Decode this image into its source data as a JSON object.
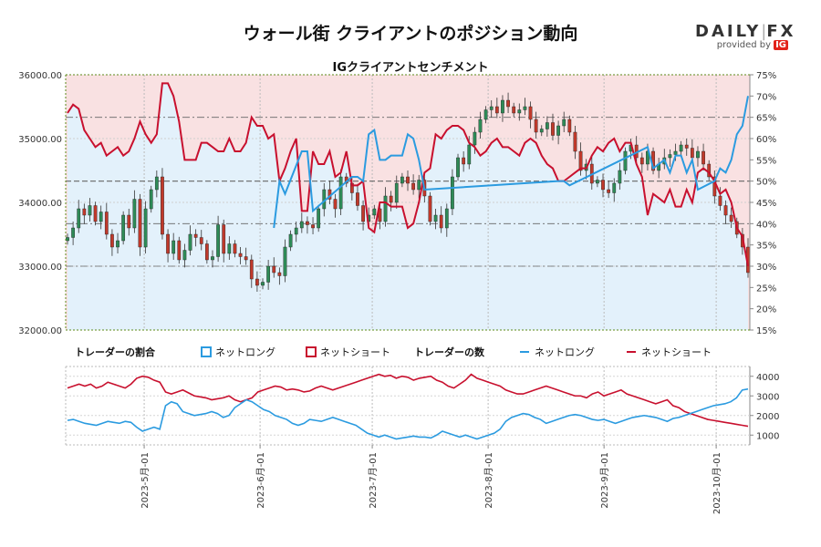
{
  "title": "ウォール街 クライアントのポジション動向",
  "subtitle": "IGクライアントセンチメント",
  "logo": {
    "brand_left": "DAILY",
    "brand_right": "FX",
    "provided": "provided by",
    "ig": "IG"
  },
  "colors": {
    "net_long": "#2b9be0",
    "net_short": "#c8102e",
    "candle_up": "#2e8b57",
    "candle_down": "#c0392b",
    "wick": "#333333",
    "pink_zone": "#f9e1e2",
    "blue_zone": "#e3f1fb",
    "left_axis": "#5b8a1a"
  },
  "legend": {
    "ratio_title": "トレーダーの割合",
    "count_title": "トレーダーの数",
    "net_long": "ネットロング",
    "net_short": "ネットショート"
  },
  "chart_data": [
    {
      "type": "line",
      "title": "IGクライアントセンチメント",
      "price_axis": {
        "ylim": [
          32000,
          36000
        ],
        "ticks": [
          "32000.00",
          "33000.00",
          "34000.00",
          "35000.00",
          "36000.00"
        ]
      },
      "ratio_axis": {
        "ylim": [
          15,
          75
        ],
        "ticks": [
          "15%",
          "20%",
          "25%",
          "30%",
          "35%",
          "40%",
          "45%",
          "50%",
          "55%",
          "60%",
          "65%",
          "70%",
          "75%"
        ]
      },
      "reference_lines_pct": [
        30,
        40,
        50,
        65
      ],
      "date_ticks": [
        "2023-5月-01",
        "2023-6月-01",
        "2023-7月-01",
        "2023-8月-01",
        "2023-9月-01",
        "2023-10月-01"
      ],
      "start_date": "2023-04-10",
      "days": 183,
      "price_close_series": [
        33450,
        33600,
        33900,
        33800,
        33950,
        33700,
        33850,
        33500,
        33300,
        33400,
        33800,
        33600,
        34050,
        33300,
        33900,
        34200,
        34400,
        33500,
        33200,
        33400,
        33100,
        33250,
        33500,
        33450,
        33350,
        33100,
        33150,
        33650,
        33200,
        33350,
        33200,
        33150,
        33100,
        32800,
        32700,
        32750,
        33000,
        32900,
        32850,
        33300,
        33500,
        33600,
        33700,
        33650,
        33600,
        33900,
        34200,
        34050,
        33900,
        34400,
        34300,
        34150,
        33950,
        33700,
        33800,
        33900,
        33700,
        34100,
        34000,
        34300,
        34400,
        34300,
        34200,
        34350,
        34100,
        33700,
        33800,
        33600,
        33900,
        34400,
        34700,
        34600,
        34900,
        35100,
        35300,
        35450,
        35500,
        35400,
        35600,
        35500,
        35400,
        35450,
        35500,
        35300,
        35100,
        35150,
        35250,
        35050,
        35200,
        35300,
        35100,
        34800,
        34500,
        34600,
        34300,
        34350,
        34200,
        34150,
        34300,
        34500,
        34800,
        34900,
        34700,
        34600,
        34800,
        34500,
        34600,
        34700,
        34750,
        34800,
        34900,
        34850,
        34700,
        34800,
        34600,
        34400,
        34100,
        33950,
        33800,
        33700,
        33500,
        33300,
        32900
      ],
      "series": [
        {
          "name": "ネットロング",
          "values_pct": [
            34,
            32,
            33,
            38,
            40,
            42,
            41,
            44,
            43,
            42,
            44,
            43,
            40,
            36,
            39,
            41,
            39,
            27,
            27,
            30,
            36,
            45,
            45,
            45,
            41,
            41,
            42,
            43,
            43,
            40,
            43,
            43,
            41,
            35,
            37,
            37,
            40,
            39,
            50,
            47,
            43,
            40,
            57,
            57,
            43,
            46,
            46,
            43,
            49,
            48,
            43,
            51,
            51,
            50,
            61,
            62,
            55,
            55,
            56,
            56,
            56,
            61,
            60,
            55,
            48,
            47,
            39,
            40,
            38,
            37,
            37,
            38,
            41,
            42,
            44,
            43,
            41,
            40,
            42,
            42,
            43,
            44,
            41,
            40,
            41,
            44,
            46,
            47,
            50,
            50,
            49,
            48,
            47,
            47,
            44,
            42,
            43,
            41,
            40,
            43,
            41,
            41,
            46,
            49,
            58,
            53,
            54,
            55,
            52,
            56,
            56,
            52,
            55,
            48,
            47,
            48,
            50,
            53,
            52,
            55,
            61,
            63,
            70
          ],
          "net_short_values_pct": [
            66,
            68,
            67,
            62,
            60,
            58,
            59,
            56,
            57,
            58,
            56,
            57,
            60,
            64,
            61,
            59,
            61,
            73,
            73,
            70,
            64,
            55,
            55,
            55,
            59,
            59,
            58,
            57,
            57,
            60,
            57,
            57,
            59,
            65,
            63,
            63,
            60,
            61,
            50,
            53,
            57,
            60,
            43,
            43,
            57,
            54,
            54,
            57,
            51,
            52,
            57,
            49,
            49,
            50,
            39,
            38,
            45,
            45,
            44,
            44,
            44,
            39,
            40,
            45,
            52,
            53,
            61,
            60,
            62,
            63,
            63,
            62,
            59,
            58,
            56,
            57,
            59,
            60,
            58,
            58,
            57,
            56,
            59,
            60,
            59,
            56,
            54,
            53,
            50,
            50,
            51,
            52,
            53,
            53,
            56,
            58,
            57,
            59,
            60,
            57,
            59,
            59,
            54,
            51,
            42,
            47,
            46,
            45,
            48,
            44,
            44,
            48,
            45,
            52,
            53,
            52,
            50,
            47,
            48,
            45,
            39,
            37,
            30
          ]
        }
      ]
    },
    {
      "type": "line",
      "title": "トレーダーの数",
      "ylim": [
        500,
        4500
      ],
      "ticks": [
        "1000",
        "2000",
        "3000",
        "4000"
      ],
      "series": [
        {
          "name": "ネットロング",
          "values": [
            1750,
            1800,
            1700,
            1600,
            1550,
            1500,
            1600,
            1700,
            1650,
            1600,
            1700,
            1650,
            1400,
            1200,
            1300,
            1400,
            1300,
            2500,
            2700,
            2600,
            2200,
            2100,
            2000,
            2050,
            2100,
            2200,
            2100,
            1900,
            2000,
            2400,
            2600,
            2800,
            2700,
            2500,
            2300,
            2200,
            2000,
            1900,
            1800,
            1600,
            1500,
            1600,
            1800,
            1750,
            1700,
            1800,
            1900,
            1800,
            1700,
            1600,
            1500,
            1300,
            1100,
            1000,
            900,
            1000,
            900,
            800,
            850,
            900,
            950,
            900,
            900,
            850,
            1000,
            1200,
            1100,
            1000,
            900,
            1000,
            900,
            800,
            900,
            1000,
            1100,
            1300,
            1700,
            1900,
            2000,
            2100,
            2050,
            1900,
            1800,
            1600,
            1700,
            1800,
            1900,
            2000,
            2050,
            2000,
            1900,
            1800,
            1750,
            1800,
            1700,
            1600,
            1700,
            1800,
            1900,
            1950,
            2000,
            1950,
            1900,
            1800,
            1700,
            1850,
            1900,
            2000,
            2100,
            2200,
            2300,
            2400,
            2500,
            2550,
            2600,
            2700,
            2900,
            3300,
            3350
          ]
        },
        {
          "name": "ネットショート",
          "values": [
            3400,
            3500,
            3600,
            3500,
            3600,
            3400,
            3500,
            3700,
            3600,
            3500,
            3400,
            3600,
            3900,
            4000,
            3950,
            3800,
            3700,
            3200,
            3100,
            3200,
            3300,
            3150,
            3000,
            2950,
            2900,
            2800,
            2850,
            2900,
            3000,
            2800,
            2700,
            2800,
            2900,
            3200,
            3300,
            3400,
            3500,
            3450,
            3300,
            3350,
            3300,
            3200,
            3250,
            3400,
            3500,
            3400,
            3300,
            3400,
            3500,
            3600,
            3700,
            3800,
            3900,
            4000,
            4100,
            4000,
            4050,
            3900,
            4000,
            3950,
            3800,
            3900,
            3950,
            4000,
            3800,
            3700,
            3500,
            3400,
            3600,
            3800,
            4100,
            3900,
            3800,
            3700,
            3600,
            3500,
            3300,
            3200,
            3100,
            3100,
            3200,
            3300,
            3400,
            3500,
            3400,
            3300,
            3200,
            3100,
            3000,
            3000,
            2900,
            3100,
            3200,
            3000,
            3100,
            3200,
            3300,
            3100,
            3000,
            2900,
            2800,
            2700,
            2600,
            2700,
            2800,
            2500,
            2400,
            2200,
            2100,
            2000,
            1900,
            1800,
            1750,
            1700,
            1650,
            1600,
            1550,
            1500,
            1450
          ]
        }
      ]
    }
  ]
}
